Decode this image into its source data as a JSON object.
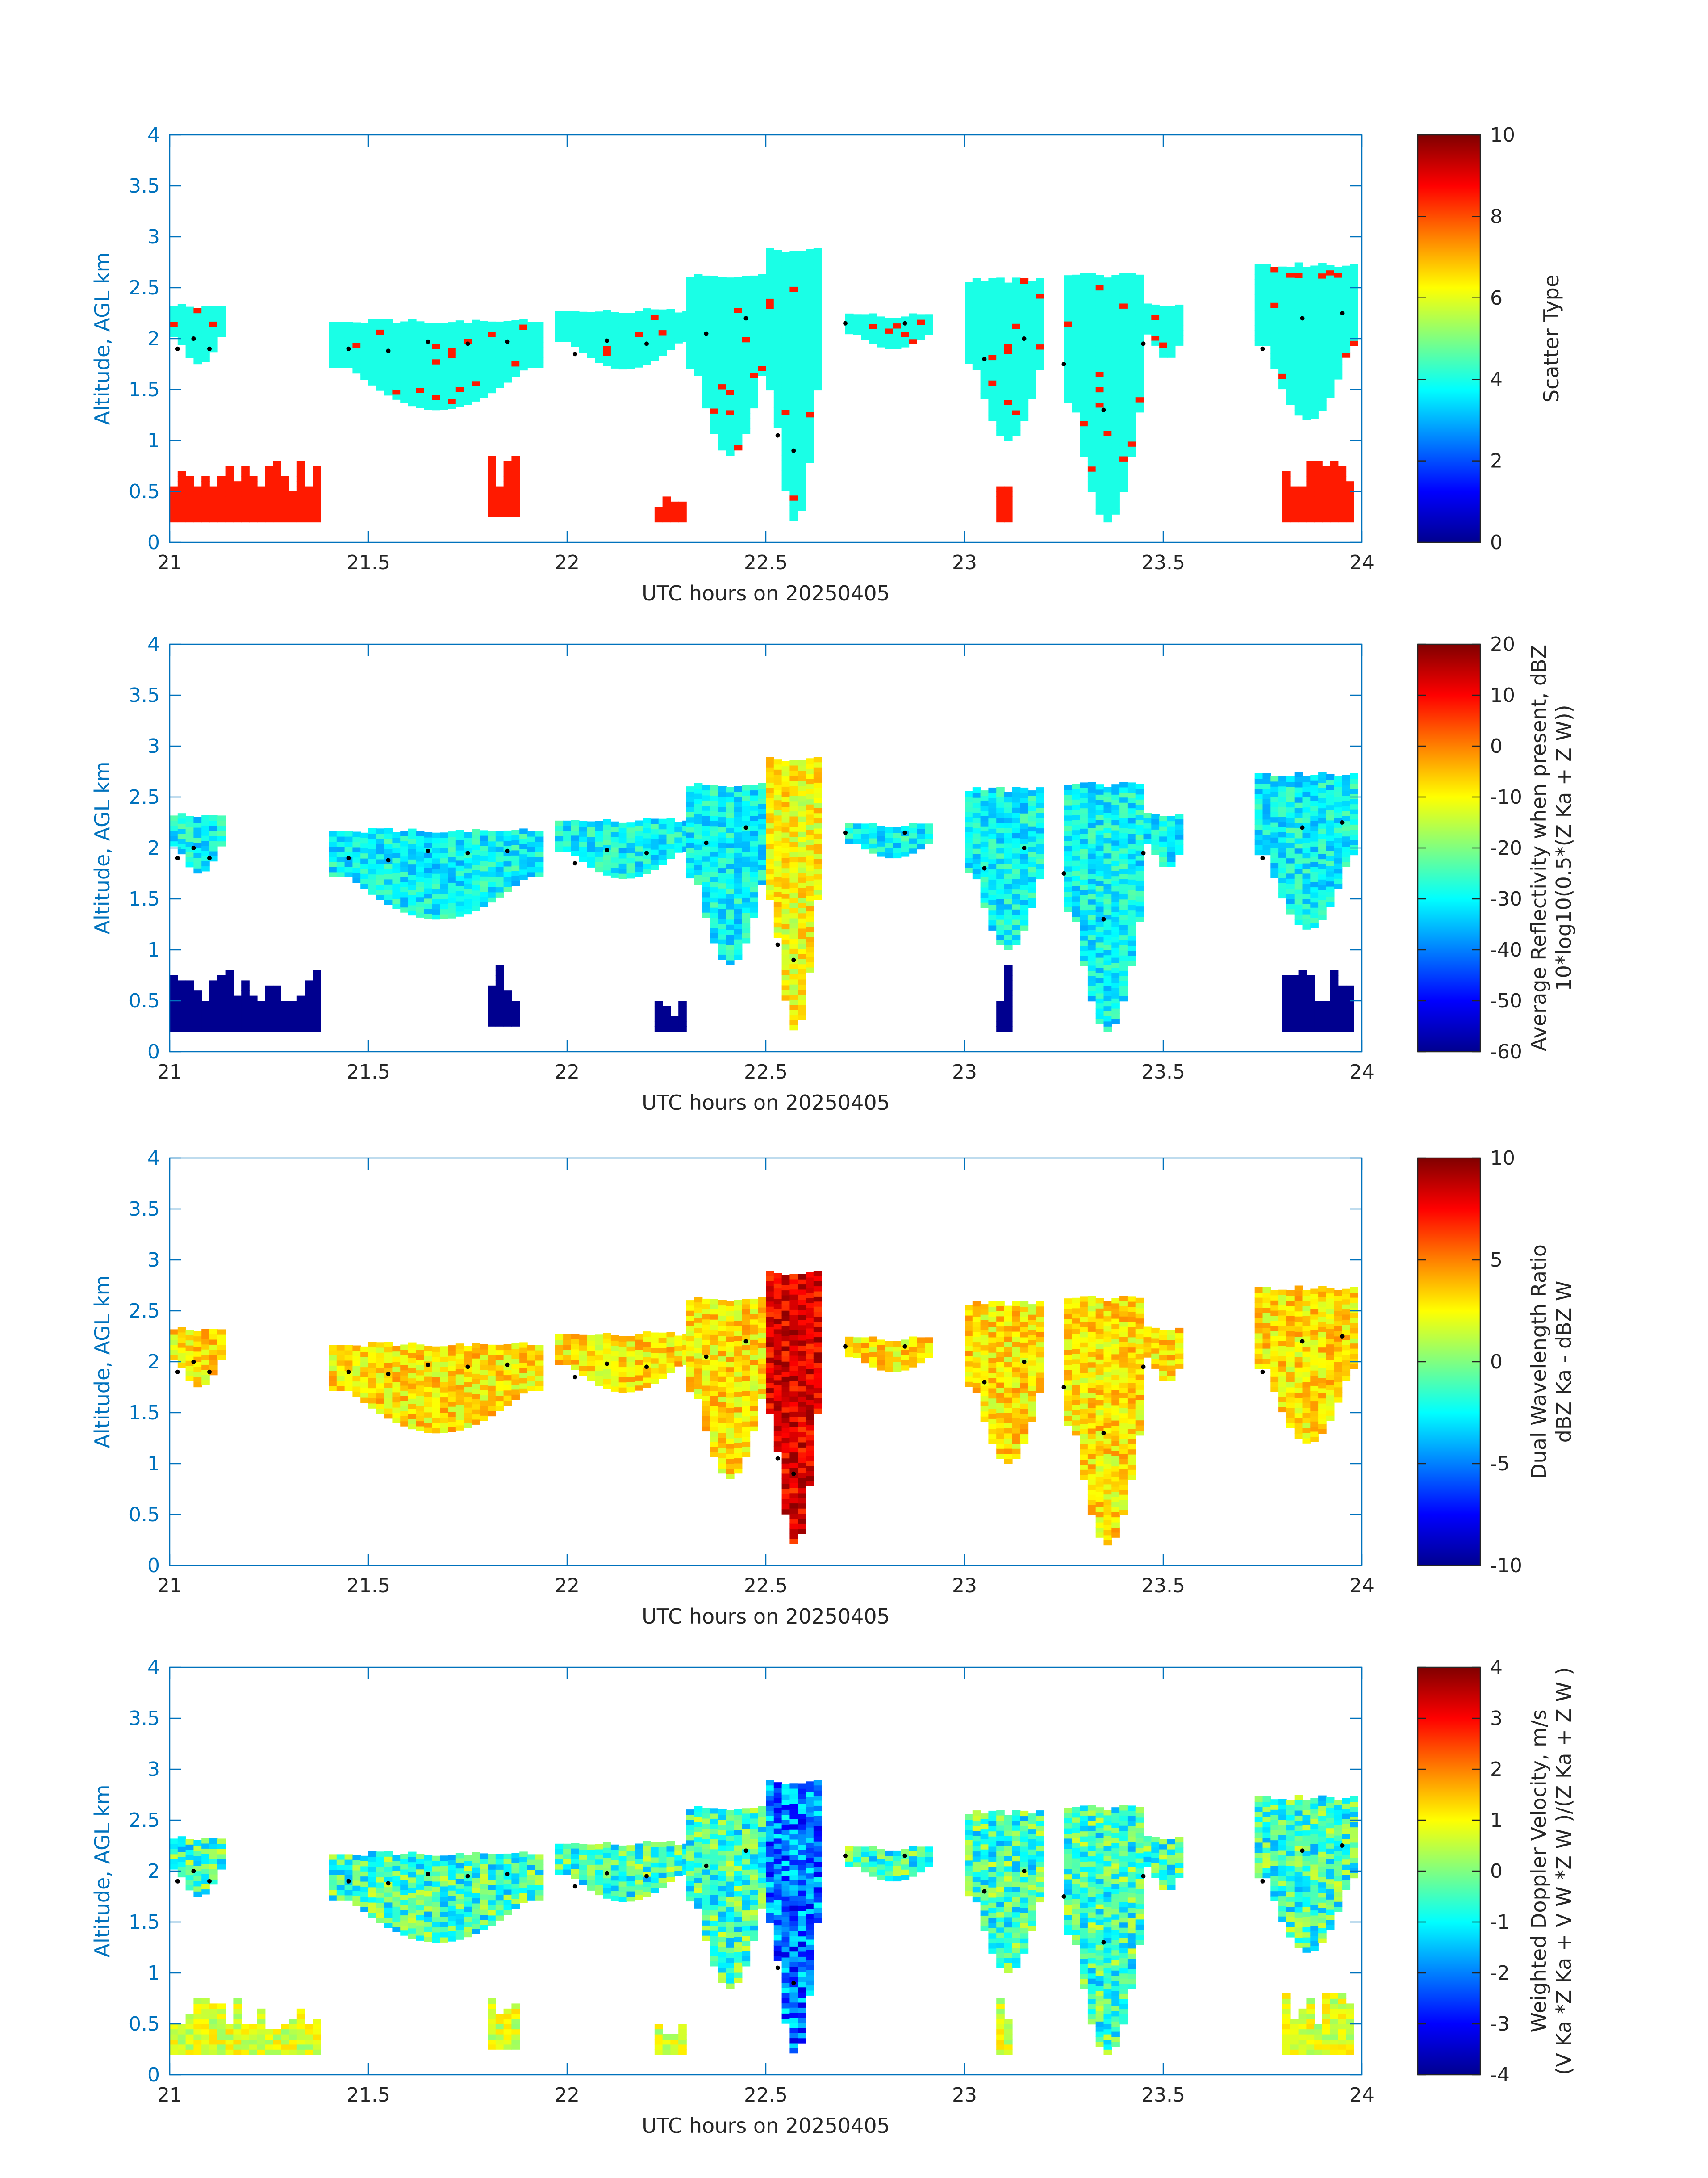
{
  "colormap": [
    "#00008f",
    "#0000ff",
    "#0080ff",
    "#00ffff",
    "#80ff80",
    "#ffff00",
    "#ff8000",
    "#ff0000",
    "#800000"
  ],
  "colors": {
    "axis": "#0072bd",
    "text": "#262626",
    "frame": "#262626"
  },
  "chart_data": [
    {
      "type": "heatmap",
      "xlabel": "UTC hours on 20250405",
      "ylabel": "Altitude, AGL km",
      "xlim": [
        21,
        24
      ],
      "ylim": [
        0,
        4
      ],
      "xticks": [
        "21",
        "21.5",
        "22",
        "22.5",
        "23",
        "23.5",
        "24"
      ],
      "yticks": [
        "0",
        "0.5",
        "1",
        "1.5",
        "2",
        "2.5",
        "3",
        "3.5",
        "4"
      ],
      "colorbar": {
        "label_lines": [
          "Scatter Type"
        ],
        "range": [
          0,
          10
        ],
        "ticks": [
          "0",
          "2",
          "4",
          "6",
          "8",
          "10"
        ]
      },
      "fill_value": 4,
      "low_level_value": 8.5,
      "reference_points": "echo_top_dots"
    },
    {
      "type": "heatmap",
      "xlabel": "UTC hours on 20250405",
      "ylabel": "Altitude, AGL km",
      "xlim": [
        21,
        24
      ],
      "ylim": [
        0,
        4
      ],
      "xticks": [
        "21",
        "21.5",
        "22",
        "22.5",
        "23",
        "23.5",
        "24"
      ],
      "yticks": [
        "0",
        "0.5",
        "1",
        "1.5",
        "2",
        "2.5",
        "3",
        "3.5",
        "4"
      ],
      "colorbar": {
        "label_lines": [
          "Average Reflectivity when present, dBZ",
          "10*log10(0.5*(Z Ka + Z W))"
        ],
        "range": [
          -60,
          20
        ],
        "ticks": [
          "-60",
          "-50",
          "-40",
          "-30",
          "-20",
          "-10",
          "0",
          "10",
          "20"
        ]
      },
      "fill_value": -30,
      "low_level_value": -60,
      "reference_points": "echo_top_dots"
    },
    {
      "type": "heatmap",
      "xlabel": "UTC hours on 20250405",
      "ylabel": "Altitude, AGL km",
      "xlim": [
        21,
        24
      ],
      "ylim": [
        0,
        4
      ],
      "xticks": [
        "21",
        "21.5",
        "22",
        "22.5",
        "23",
        "23.5",
        "24"
      ],
      "yticks": [
        "0",
        "0.5",
        "1",
        "1.5",
        "2",
        "2.5",
        "3",
        "3.5",
        "4"
      ],
      "colorbar": {
        "label_lines": [
          "Dual Wavelength Ratio",
          "dBZ Ka - dBZ W"
        ],
        "range": [
          -10,
          10
        ],
        "ticks": [
          "-10",
          "-5",
          "0",
          "5",
          "10"
        ]
      },
      "fill_value": 3,
      "low_level_value": null,
      "reference_points": "echo_top_dots"
    },
    {
      "type": "heatmap",
      "xlabel": "UTC hours on 20250405",
      "ylabel": "Altitude, AGL km",
      "xlim": [
        21,
        24
      ],
      "ylim": [
        0,
        4
      ],
      "xticks": [
        "21",
        "21.5",
        "22",
        "22.5",
        "23",
        "23.5",
        "24"
      ],
      "yticks": [
        "0",
        "0.5",
        "1",
        "1.5",
        "2",
        "2.5",
        "3",
        "3.5",
        "4"
      ],
      "colorbar": {
        "label_lines": [
          "Weighted Doppler Velocity, m/s",
          "(V Ka *Z Ka + V W *Z W )/(Z Ka + Z W )"
        ],
        "range": [
          -4,
          4
        ],
        "ticks": [
          "-4",
          "-3",
          "-2",
          "-1",
          "0",
          "1",
          "2",
          "3",
          "4"
        ]
      },
      "fill_value": -0.5,
      "low_level_value": 0.7,
      "reference_points": "echo_top_dots"
    }
  ],
  "cloud_layers": [
    {
      "t0": 21.0,
      "t1": 21.13,
      "z0": 1.75,
      "z1": 2.3
    },
    {
      "t0": 21.4,
      "t1": 21.93,
      "z0": 1.3,
      "z1": 2.15
    },
    {
      "t0": 21.97,
      "t1": 22.3,
      "z0": 1.7,
      "z1": 2.25
    },
    {
      "t0": 22.3,
      "t1": 22.5,
      "z0": 0.85,
      "z1": 2.6
    },
    {
      "t0": 22.5,
      "t1": 22.63,
      "z0": 0.2,
      "z1": 2.85
    },
    {
      "t0": 22.7,
      "t1": 22.92,
      "z0": 1.9,
      "z1": 2.2
    },
    {
      "t0": 23.0,
      "t1": 23.2,
      "z0": 1.0,
      "z1": 2.55
    },
    {
      "t0": 23.25,
      "t1": 23.45,
      "z0": 0.2,
      "z1": 2.6
    },
    {
      "t0": 23.45,
      "t1": 23.55,
      "z0": 1.8,
      "z1": 2.3
    },
    {
      "t0": 23.73,
      "t1": 23.98,
      "z0": 1.2,
      "z1": 2.7
    }
  ],
  "low_layers": [
    {
      "t0": 21.0,
      "t1": 21.37,
      "z0": 0.2,
      "z1": 0.8
    },
    {
      "t0": 21.8,
      "t1": 21.87,
      "z0": 0.25,
      "z1": 0.85
    },
    {
      "t0": 22.22,
      "t1": 22.3,
      "z0": 0.2,
      "z1": 0.5
    },
    {
      "t0": 23.08,
      "t1": 23.12,
      "z0": 0.2,
      "z1": 0.85
    },
    {
      "t0": 23.8,
      "t1": 23.98,
      "z0": 0.2,
      "z1": 0.8
    }
  ],
  "echo_top_dots": [
    {
      "t": 21.02,
      "z": 1.9
    },
    {
      "t": 21.06,
      "z": 2.0
    },
    {
      "t": 21.1,
      "z": 1.9
    },
    {
      "t": 21.45,
      "z": 1.9
    },
    {
      "t": 21.55,
      "z": 1.88
    },
    {
      "t": 21.65,
      "z": 1.97
    },
    {
      "t": 21.75,
      "z": 1.95
    },
    {
      "t": 21.85,
      "z": 1.97
    },
    {
      "t": 22.02,
      "z": 1.85
    },
    {
      "t": 22.1,
      "z": 1.98
    },
    {
      "t": 22.2,
      "z": 1.95
    },
    {
      "t": 22.35,
      "z": 2.05
    },
    {
      "t": 22.45,
      "z": 2.2
    },
    {
      "t": 22.53,
      "z": 1.05
    },
    {
      "t": 22.57,
      "z": 0.9
    },
    {
      "t": 22.7,
      "z": 2.15
    },
    {
      "t": 22.85,
      "z": 2.15
    },
    {
      "t": 23.05,
      "z": 1.8
    },
    {
      "t": 23.15,
      "z": 2.0
    },
    {
      "t": 23.25,
      "z": 1.75
    },
    {
      "t": 23.35,
      "z": 1.3
    },
    {
      "t": 23.45,
      "z": 1.95
    },
    {
      "t": 23.75,
      "z": 1.9
    },
    {
      "t": 23.85,
      "z": 2.2
    },
    {
      "t": 23.95,
      "z": 2.25
    }
  ]
}
